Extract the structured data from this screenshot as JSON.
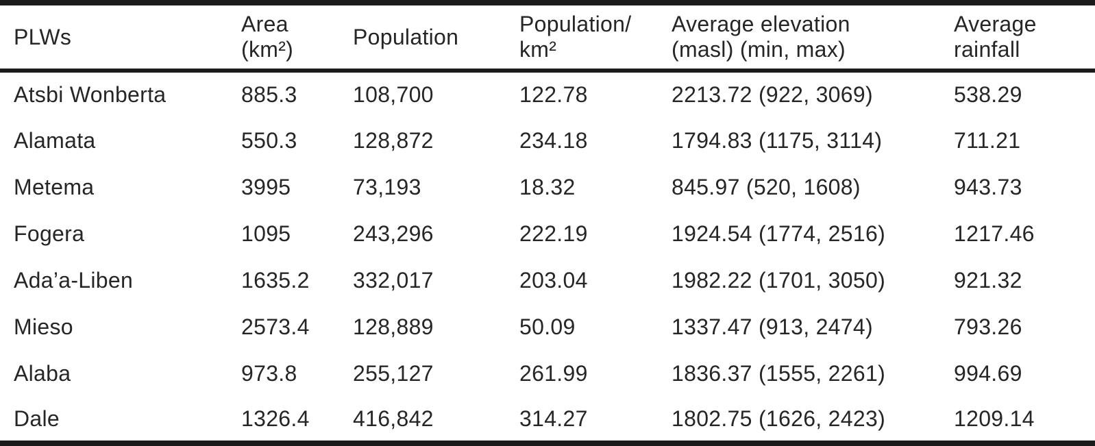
{
  "table": {
    "name": "PLW characteristics summary table",
    "columns": [
      {
        "key": "plw",
        "label": "PLWs"
      },
      {
        "key": "area",
        "label": "Area\n(km²)"
      },
      {
        "key": "population",
        "label": "Population"
      },
      {
        "key": "density",
        "label": "Population/\nkm²"
      },
      {
        "key": "elevation",
        "label": "Average elevation\n(masl) (min, max)"
      },
      {
        "key": "rainfall",
        "label": "Average\nrainfall"
      }
    ],
    "rows": [
      {
        "plw": "Atsbi Wonberta",
        "area": "885.3",
        "population": "108,700",
        "density": "122.78",
        "elevation": "2213.72 (922, 3069)",
        "rainfall": "538.29"
      },
      {
        "plw": "Alamata",
        "area": "550.3",
        "population": "128,872",
        "density": "234.18",
        "elevation": "1794.83 (1175, 3114)",
        "rainfall": "711.21"
      },
      {
        "plw": "Metema",
        "area": "3995",
        "population": "73,193",
        "density": "18.32",
        "elevation": "845.97 (520, 1608)",
        "rainfall": "943.73"
      },
      {
        "plw": "Fogera",
        "area": "1095",
        "population": "243,296",
        "density": "222.19",
        "elevation": "1924.54 (1774, 2516)",
        "rainfall": "1217.46"
      },
      {
        "plw": "Ada’a-Liben",
        "area": "1635.2",
        "population": "332,017",
        "density": "203.04",
        "elevation": "1982.22 (1701, 3050)",
        "rainfall": "921.32"
      },
      {
        "plw": "Mieso",
        "area": "2573.4",
        "population": "128,889",
        "density": "50.09",
        "elevation": "1337.47 (913, 2474)",
        "rainfall": "793.26"
      },
      {
        "plw": "Alaba",
        "area": "973.8",
        "population": "255,127",
        "density": "261.99",
        "elevation": "1836.37 (1555, 2261)",
        "rainfall": "994.69"
      },
      {
        "plw": "Dale",
        "area": "1326.4",
        "population": "416,842",
        "density": "314.27",
        "elevation": "1802.75 (1626, 2423)",
        "rainfall": "1209.14"
      }
    ]
  },
  "colors": {
    "text": "#262626",
    "rule": "#1b1b1b",
    "background": "#ffffff"
  }
}
